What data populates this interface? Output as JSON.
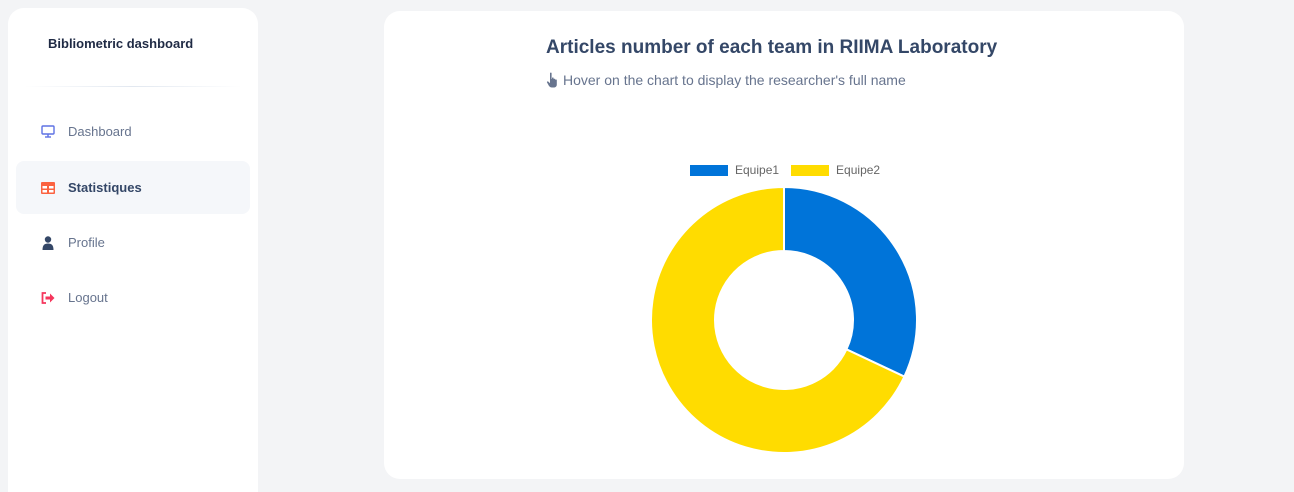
{
  "sidebar": {
    "brand": "Bibliometric dashboard",
    "items": [
      {
        "label": "Dashboard",
        "icon": "monitor-icon",
        "active": false
      },
      {
        "label": "Statistiques",
        "icon": "table-icon",
        "active": true
      },
      {
        "label": "Profile",
        "icon": "user-icon",
        "active": false
      },
      {
        "label": "Logout",
        "icon": "logout-icon",
        "active": false
      }
    ]
  },
  "card": {
    "title": "Articles number of each team in RIIMA Laboratory",
    "subtitle": "Hover on the chart to display the researcher's full name",
    "subtitle_icon": "pointing-hand-icon"
  },
  "colors": {
    "accent_blue": "#0074d9",
    "accent_yellow": "#ffdc00",
    "text_dark": "#344767",
    "text_muted": "#67748e"
  },
  "chart_data": {
    "type": "pie",
    "variant": "doughnut",
    "categories": [
      "Equipe1",
      "Equipe2"
    ],
    "values": [
      32,
      68
    ],
    "colors": [
      "#0074d9",
      "#ffdc00"
    ],
    "legend_position": "top"
  }
}
